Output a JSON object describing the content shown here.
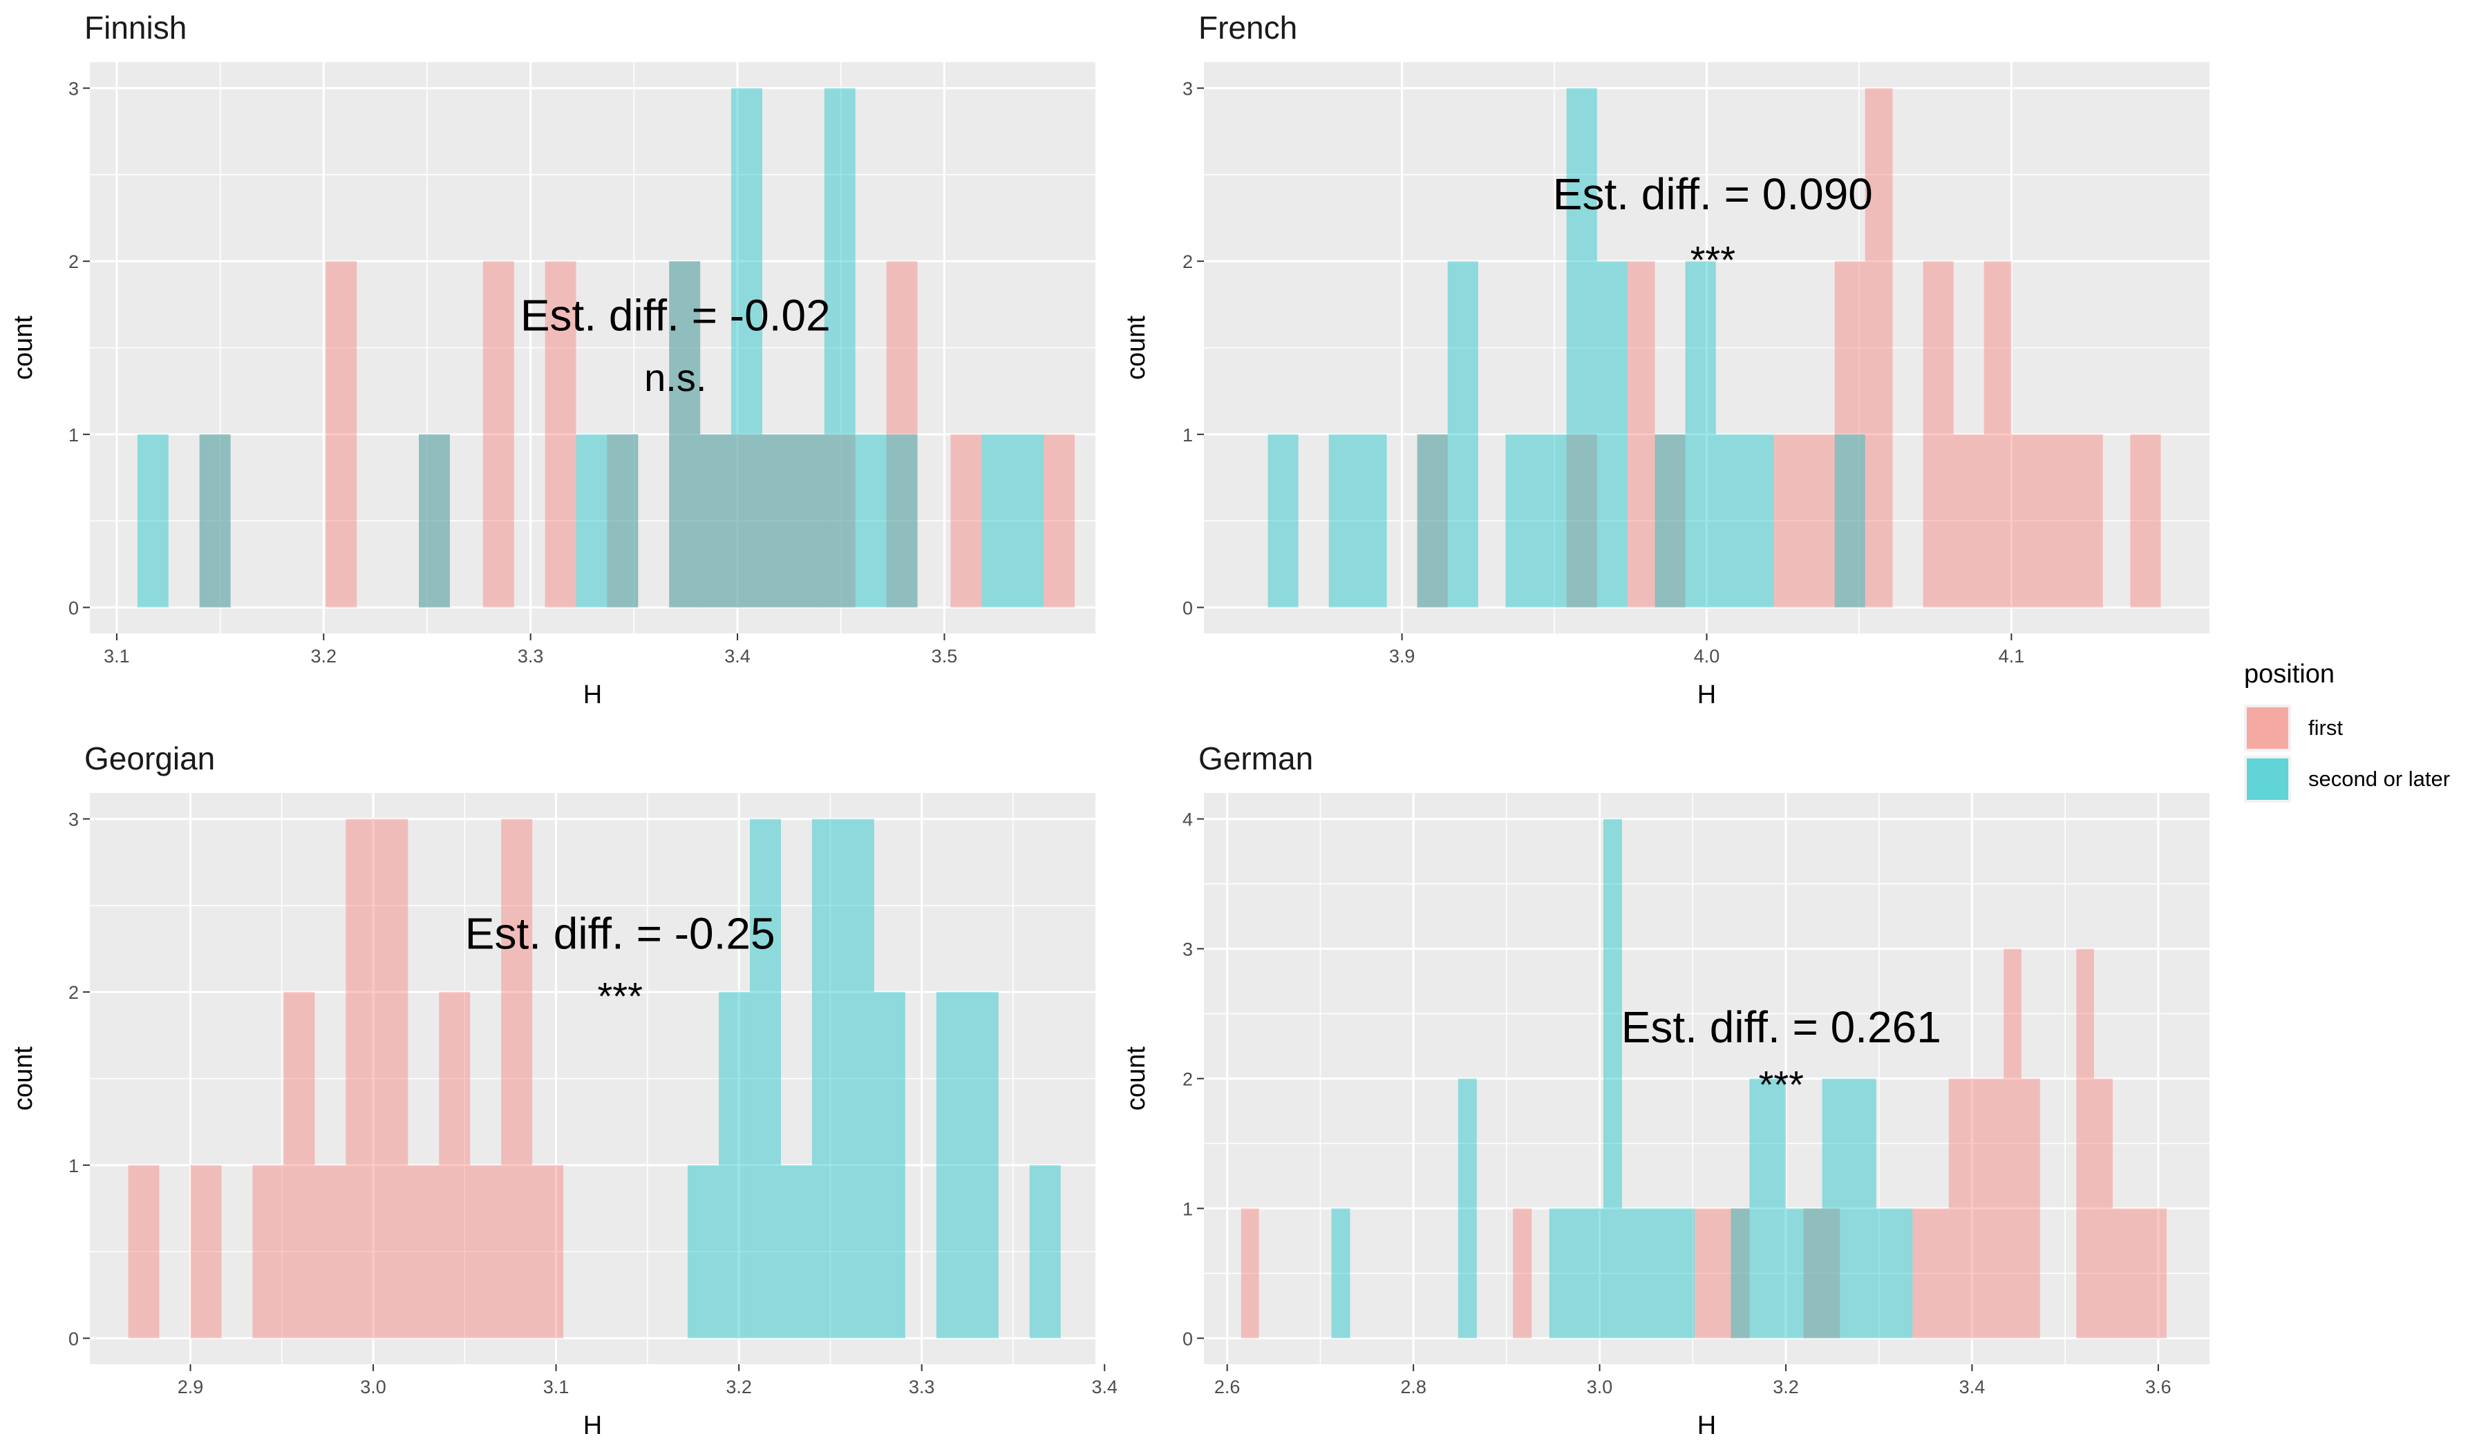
{
  "chart_data": [
    {
      "type": "histogram",
      "title": "Finnish",
      "xlabel": "H",
      "ylabel": "count",
      "xlim": [
        3.087,
        3.573
      ],
      "ylim": [
        -0.15,
        3.15
      ],
      "xticks": [
        3.1,
        3.2,
        3.3,
        3.4,
        3.5
      ],
      "yticks": [
        0,
        1,
        2,
        3
      ],
      "annotation": "Est. diff. = -0.02",
      "annotation_x": 3.37,
      "annotation_y": 1.6,
      "significance": "n.s.",
      "significance_x": 3.37,
      "significance_y": 1.25,
      "series": [
        {
          "name": "first",
          "color": "#F8766D",
          "bars": [
            {
              "x0": 3.14,
              "x1": 3.155,
              "count": 1
            },
            {
              "x0": 3.201,
              "x1": 3.216,
              "count": 2
            },
            {
              "x0": 3.246,
              "x1": 3.261,
              "count": 1
            },
            {
              "x0": 3.277,
              "x1": 3.292,
              "count": 2
            },
            {
              "x0": 3.307,
              "x1": 3.322,
              "count": 2
            },
            {
              "x0": 3.337,
              "x1": 3.352,
              "count": 1
            },
            {
              "x0": 3.367,
              "x1": 3.382,
              "count": 2
            },
            {
              "x0": 3.382,
              "x1": 3.457,
              "count": 1
            },
            {
              "x0": 3.472,
              "x1": 3.487,
              "count": 2
            },
            {
              "x0": 3.503,
              "x1": 3.518,
              "count": 1
            },
            {
              "x0": 3.548,
              "x1": 3.563,
              "count": 1
            }
          ]
        },
        {
          "name": "second or later",
          "color": "#00BFC4",
          "bars": [
            {
              "x0": 3.11,
              "x1": 3.125,
              "count": 1
            },
            {
              "x0": 3.14,
              "x1": 3.155,
              "count": 1
            },
            {
              "x0": 3.246,
              "x1": 3.261,
              "count": 1
            },
            {
              "x0": 3.322,
              "x1": 3.337,
              "count": 1
            },
            {
              "x0": 3.337,
              "x1": 3.352,
              "count": 1
            },
            {
              "x0": 3.367,
              "x1": 3.382,
              "count": 2
            },
            {
              "x0": 3.382,
              "x1": 3.397,
              "count": 1
            },
            {
              "x0": 3.397,
              "x1": 3.412,
              "count": 3
            },
            {
              "x0": 3.412,
              "x1": 3.442,
              "count": 1
            },
            {
              "x0": 3.442,
              "x1": 3.457,
              "count": 3
            },
            {
              "x0": 3.457,
              "x1": 3.487,
              "count": 1
            },
            {
              "x0": 3.518,
              "x1": 3.548,
              "count": 1
            }
          ]
        }
      ]
    },
    {
      "type": "histogram",
      "title": "French",
      "xlabel": "H",
      "ylabel": "count",
      "xlim": [
        3.835,
        4.165
      ],
      "ylim": [
        -0.15,
        3.15
      ],
      "xticks": [
        3.9,
        4.0,
        4.1
      ],
      "yticks": [
        0,
        1,
        2,
        3
      ],
      "annotation": "Est. diff. = 0.090",
      "annotation_x": 4.002,
      "annotation_y": 2.3,
      "significance": "***",
      "significance_x": 4.002,
      "significance_y": 1.93,
      "series": [
        {
          "name": "first",
          "color": "#F8766D",
          "bars": [
            {
              "x0": 3.905,
              "x1": 3.915,
              "count": 1
            },
            {
              "x0": 3.954,
              "x1": 3.964,
              "count": 1
            },
            {
              "x0": 3.974,
              "x1": 3.983,
              "count": 2
            },
            {
              "x0": 3.983,
              "x1": 3.993,
              "count": 1
            },
            {
              "x0": 4.022,
              "x1": 4.042,
              "count": 1
            },
            {
              "x0": 4.042,
              "x1": 4.052,
              "count": 2
            },
            {
              "x0": 4.052,
              "x1": 4.061,
              "count": 3
            },
            {
              "x0": 4.071,
              "x1": 4.081,
              "count": 2
            },
            {
              "x0": 4.081,
              "x1": 4.091,
              "count": 1
            },
            {
              "x0": 4.091,
              "x1": 4.1,
              "count": 2
            },
            {
              "x0": 4.1,
              "x1": 4.11,
              "count": 1
            },
            {
              "x0": 4.11,
              "x1": 4.13,
              "count": 1
            },
            {
              "x0": 4.139,
              "x1": 4.149,
              "count": 1
            }
          ]
        },
        {
          "name": "second or later",
          "color": "#00BFC4",
          "bars": [
            {
              "x0": 3.856,
              "x1": 3.866,
              "count": 1
            },
            {
              "x0": 3.876,
              "x1": 3.895,
              "count": 1
            },
            {
              "x0": 3.905,
              "x1": 3.915,
              "count": 1
            },
            {
              "x0": 3.915,
              "x1": 3.925,
              "count": 2
            },
            {
              "x0": 3.934,
              "x1": 3.954,
              "count": 1
            },
            {
              "x0": 3.954,
              "x1": 3.964,
              "count": 3
            },
            {
              "x0": 3.964,
              "x1": 3.974,
              "count": 2
            },
            {
              "x0": 3.983,
              "x1": 3.993,
              "count": 1
            },
            {
              "x0": 3.993,
              "x1": 4.003,
              "count": 2
            },
            {
              "x0": 4.003,
              "x1": 4.022,
              "count": 1
            },
            {
              "x0": 4.042,
              "x1": 4.052,
              "count": 1
            }
          ]
        }
      ]
    },
    {
      "type": "histogram",
      "title": "Georgian",
      "xlabel": "H",
      "ylabel": "count",
      "xlim": [
        2.845,
        3.395
      ],
      "ylim": [
        -0.15,
        3.15
      ],
      "xticks": [
        2.9,
        3.0,
        3.1,
        3.2,
        3.3,
        3.4
      ],
      "yticks": [
        0,
        1,
        2,
        3
      ],
      "annotation": "Est. diff. = -0.25",
      "annotation_x": 3.135,
      "annotation_y": 2.25,
      "significance": "***",
      "significance_x": 3.135,
      "significance_y": 1.9,
      "series": [
        {
          "name": "first",
          "color": "#F8766D",
          "bars": [
            {
              "x0": 2.866,
              "x1": 2.883,
              "count": 1
            },
            {
              "x0": 2.9,
              "x1": 2.917,
              "count": 1
            },
            {
              "x0": 2.934,
              "x1": 2.951,
              "count": 1
            },
            {
              "x0": 2.951,
              "x1": 2.968,
              "count": 2
            },
            {
              "x0": 2.968,
              "x1": 2.985,
              "count": 1
            },
            {
              "x0": 2.985,
              "x1": 3.019,
              "count": 3
            },
            {
              "x0": 3.019,
              "x1": 3.036,
              "count": 1
            },
            {
              "x0": 3.036,
              "x1": 3.053,
              "count": 2
            },
            {
              "x0": 3.053,
              "x1": 3.07,
              "count": 1
            },
            {
              "x0": 3.07,
              "x1": 3.087,
              "count": 3
            },
            {
              "x0": 3.087,
              "x1": 3.104,
              "count": 1
            }
          ]
        },
        {
          "name": "second or later",
          "color": "#00BFC4",
          "bars": [
            {
              "x0": 3.172,
              "x1": 3.189,
              "count": 1
            },
            {
              "x0": 3.189,
              "x1": 3.206,
              "count": 2
            },
            {
              "x0": 3.206,
              "x1": 3.223,
              "count": 3
            },
            {
              "x0": 3.223,
              "x1": 3.24,
              "count": 1
            },
            {
              "x0": 3.24,
              "x1": 3.274,
              "count": 3
            },
            {
              "x0": 3.274,
              "x1": 3.291,
              "count": 2
            },
            {
              "x0": 3.308,
              "x1": 3.342,
              "count": 2
            },
            {
              "x0": 3.359,
              "x1": 3.376,
              "count": 1
            }
          ]
        }
      ]
    },
    {
      "type": "histogram",
      "title": "German",
      "xlabel": "H",
      "ylabel": "count",
      "xlim": [
        2.575,
        3.655
      ],
      "ylim": [
        -0.2,
        4.2
      ],
      "xticks": [
        2.6,
        2.8,
        3.0,
        3.2,
        3.4,
        3.6
      ],
      "yticks": [
        0,
        1,
        2,
        3,
        4
      ],
      "annotation": "Est. diff. = 0.261",
      "annotation_x": 3.195,
      "annotation_y": 2.28,
      "significance": "***",
      "significance_x": 3.195,
      "significance_y": 1.85,
      "series": [
        {
          "name": "first",
          "color": "#F8766D",
          "bars": [
            {
              "x0": 2.615,
              "x1": 2.634,
              "count": 1
            },
            {
              "x0": 2.907,
              "x1": 2.927,
              "count": 1
            },
            {
              "x0": 3.102,
              "x1": 3.161,
              "count": 1
            },
            {
              "x0": 3.219,
              "x1": 3.239,
              "count": 1
            },
            {
              "x0": 3.239,
              "x1": 3.258,
              "count": 1
            },
            {
              "x0": 3.336,
              "x1": 3.375,
              "count": 1
            },
            {
              "x0": 3.375,
              "x1": 3.434,
              "count": 2
            },
            {
              "x0": 3.434,
              "x1": 3.453,
              "count": 3
            },
            {
              "x0": 3.453,
              "x1": 3.473,
              "count": 2
            },
            {
              "x0": 3.512,
              "x1": 3.531,
              "count": 3
            },
            {
              "x0": 3.531,
              "x1": 3.551,
              "count": 2
            },
            {
              "x0": 3.551,
              "x1": 3.609,
              "count": 1
            }
          ]
        },
        {
          "name": "second or later",
          "color": "#00BFC4",
          "bars": [
            {
              "x0": 2.712,
              "x1": 2.732,
              "count": 1
            },
            {
              "x0": 2.848,
              "x1": 2.868,
              "count": 2
            },
            {
              "x0": 2.946,
              "x1": 3.004,
              "count": 1
            },
            {
              "x0": 3.004,
              "x1": 3.024,
              "count": 4
            },
            {
              "x0": 3.024,
              "x1": 3.102,
              "count": 1
            },
            {
              "x0": 3.141,
              "x1": 3.161,
              "count": 1
            },
            {
              "x0": 3.161,
              "x1": 3.2,
              "count": 2
            },
            {
              "x0": 3.2,
              "x1": 3.239,
              "count": 1
            },
            {
              "x0": 3.239,
              "x1": 3.297,
              "count": 2
            },
            {
              "x0": 3.297,
              "x1": 3.336,
              "count": 1
            }
          ]
        }
      ]
    }
  ],
  "legend": {
    "title": "position",
    "placement": "right",
    "items": [
      {
        "label": "first",
        "color": "#F8766D"
      },
      {
        "label": "second or later",
        "color": "#00BFC4"
      }
    ]
  },
  "style": {
    "panel_bg": "#EBEBEB",
    "grid_color": "#FFFFFF",
    "bar_alpha": 0.4,
    "axis_text_color": "#4D4D4D",
    "tick_color": "#333333"
  }
}
